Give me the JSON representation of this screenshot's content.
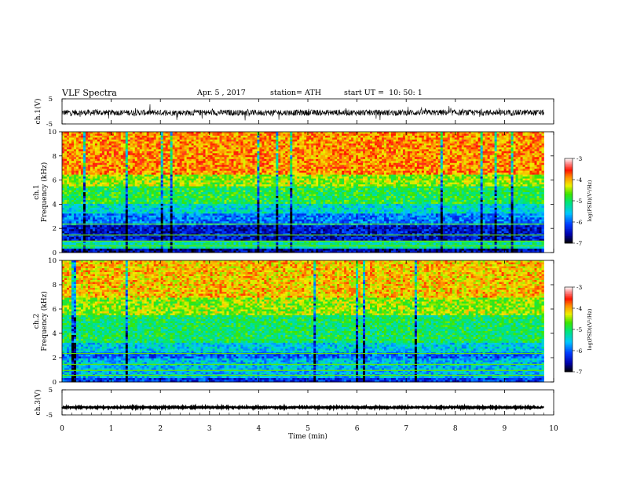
{
  "header": {
    "title": "VLF Spectra",
    "date": "Apr. 5 , 2017",
    "station": "station= ATH",
    "start": "start UT =  10: 50: 1"
  },
  "chart_data": [
    {
      "type": "line",
      "name": "waveform-ch1",
      "ylabel": "ch.1(V)",
      "ylim": [
        -5,
        5
      ],
      "yticks": [
        "5",
        "-5"
      ],
      "xlim": [
        0,
        10
      ],
      "data_extent_min": 9.8,
      "mean": -0.5,
      "amplitude": 1.2
    },
    {
      "type": "heatmap",
      "name": "spectrogram-ch1",
      "ylabel": "ch.1\nFrequency (kHz)",
      "ylim": [
        0,
        10
      ],
      "yticks": [
        "0",
        "2",
        "4",
        "6",
        "8",
        "10"
      ],
      "xlim": [
        0,
        10
      ],
      "data_extent_min": 9.8,
      "colorbar": {
        "label": "log(PSD)(V²/Hz)",
        "range": [
          -7,
          -3
        ],
        "ticks": [
          "-3",
          "-4",
          "-5",
          "-6",
          "-7"
        ]
      },
      "bands_khz": [
        {
          "from": 6.5,
          "to": 10.0,
          "level": -3.9
        },
        {
          "from": 5.5,
          "to": 6.5,
          "level": -4.5
        },
        {
          "from": 4.0,
          "to": 5.5,
          "level": -4.9
        },
        {
          "from": 3.3,
          "to": 4.0,
          "level": -5.4
        },
        {
          "from": 2.3,
          "to": 3.3,
          "level": -5.9
        },
        {
          "from": 1.0,
          "to": 2.3,
          "level": -6.4
        },
        {
          "from": 0.3,
          "to": 1.0,
          "level": -5.2
        },
        {
          "from": 0.0,
          "to": 0.3,
          "level": -6.6
        }
      ]
    },
    {
      "type": "heatmap",
      "name": "spectrogram-ch2",
      "ylabel": "ch.2\nFrequency (kHz)",
      "ylim": [
        0,
        10
      ],
      "yticks": [
        "0",
        "2",
        "4",
        "6",
        "8",
        "10"
      ],
      "xlim": [
        0,
        10
      ],
      "data_extent_min": 9.8,
      "colorbar": {
        "label": "log(PSD)(V²/Hz)",
        "range": [
          -7,
          -3
        ],
        "ticks": [
          "-3",
          "-4",
          "-5",
          "-6",
          "-7"
        ]
      },
      "bands_khz": [
        {
          "from": 7.0,
          "to": 10.0,
          "level": -4.1
        },
        {
          "from": 5.5,
          "to": 7.0,
          "level": -4.5
        },
        {
          "from": 3.3,
          "to": 5.5,
          "level": -5.0
        },
        {
          "from": 2.5,
          "to": 3.3,
          "level": -5.5
        },
        {
          "from": 2.0,
          "to": 2.5,
          "level": -6.0
        },
        {
          "from": 0.3,
          "to": 2.0,
          "level": -5.6
        },
        {
          "from": 0.0,
          "to": 0.3,
          "level": -6.2
        }
      ]
    },
    {
      "type": "line",
      "name": "waveform-ch3",
      "ylabel": "ch.3(V)",
      "ylim": [
        -5,
        5
      ],
      "yticks": [
        "5",
        "-5"
      ],
      "xlim": [
        0,
        10
      ],
      "data_extent_min": 9.8,
      "mean": -2.0,
      "amplitude": 0.25
    }
  ],
  "xaxis": {
    "label": "Time (min)",
    "ticks": [
      "0",
      "1",
      "2",
      "3",
      "4",
      "5",
      "6",
      "7",
      "8",
      "9",
      "10"
    ]
  }
}
